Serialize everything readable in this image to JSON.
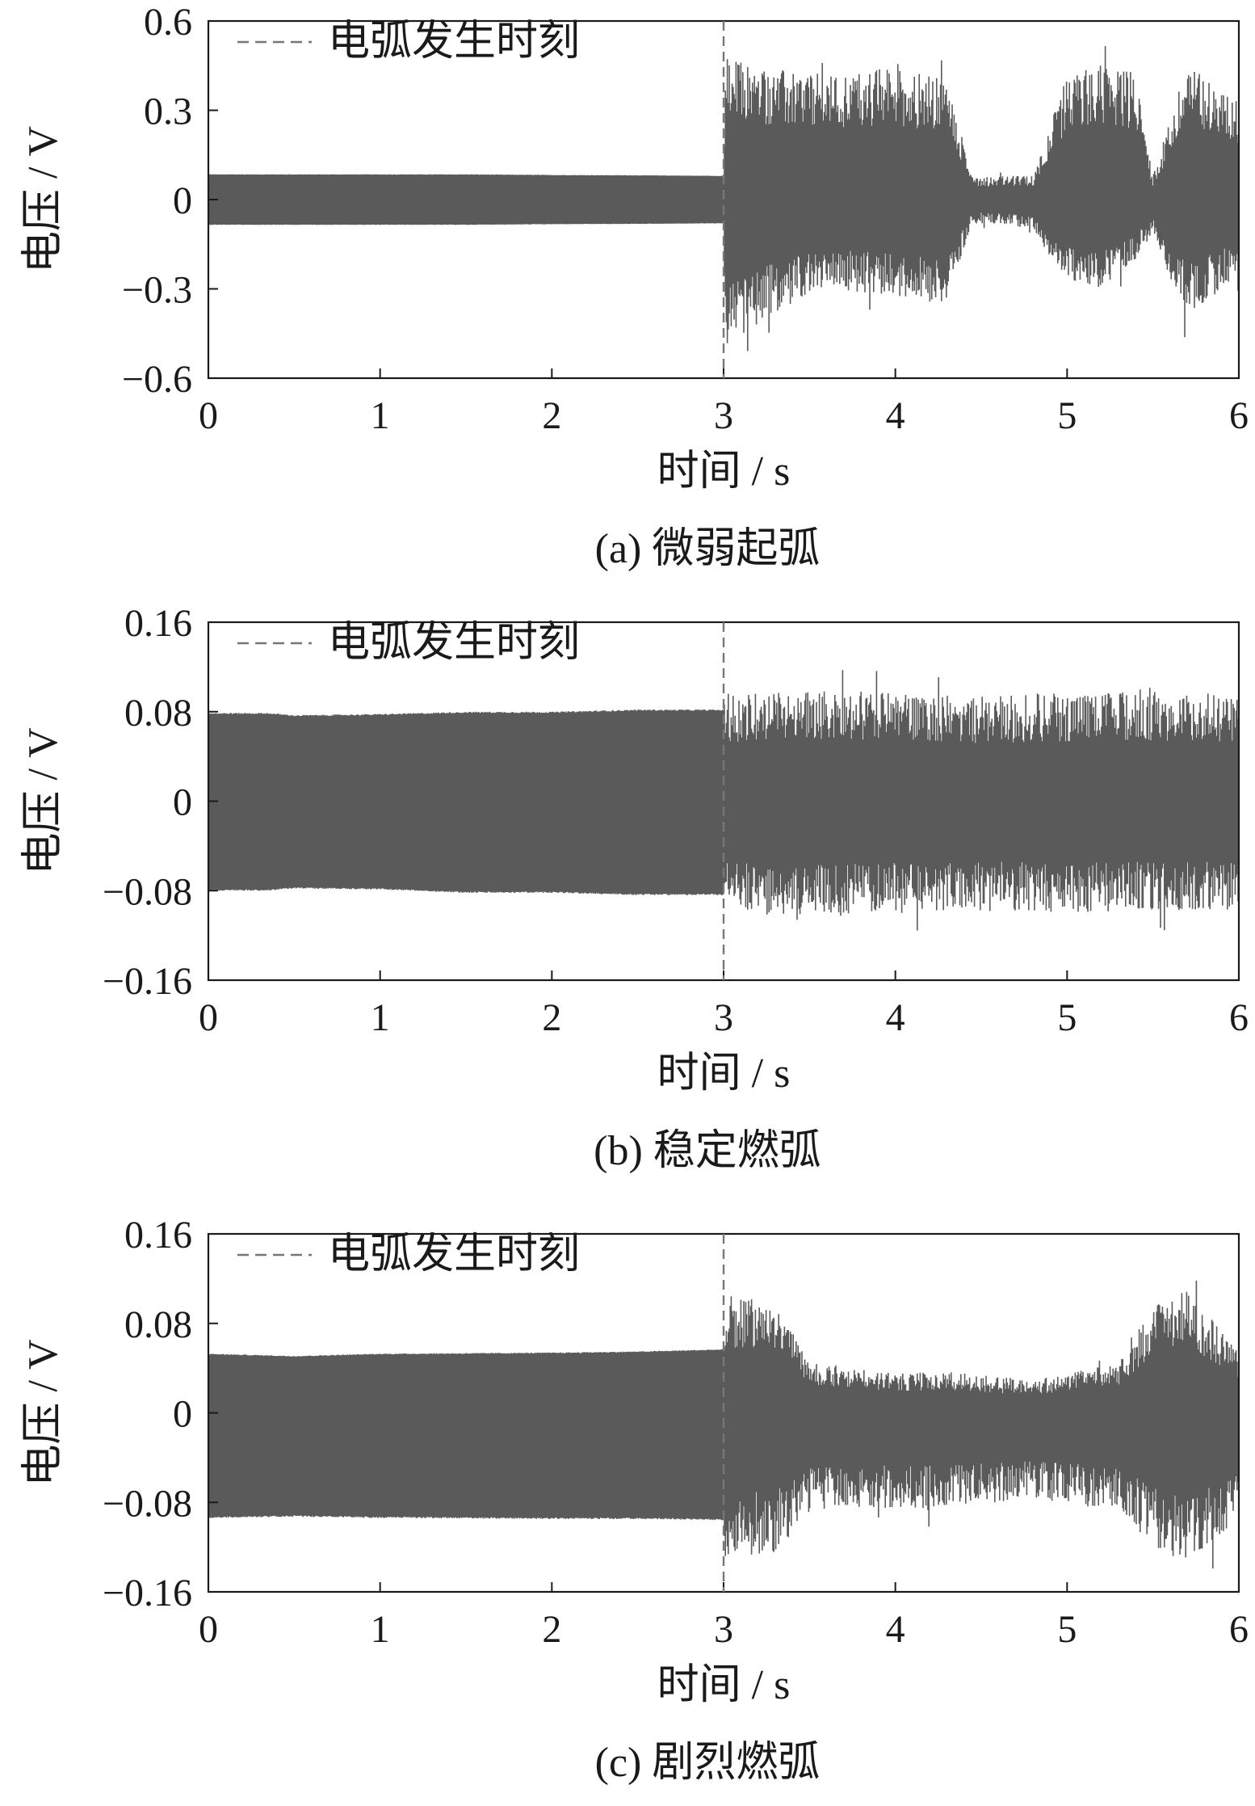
{
  "colors": {
    "signal": "#5a5a5a",
    "axis": "#1a1a1a",
    "marker": "#777777",
    "background": "#ffffff"
  },
  "chart_data": [
    {
      "type": "line",
      "caption": "(a) 微弱起弧",
      "xlabel": "时间 / s",
      "ylabel": "电压 / V",
      "xlim": [
        0,
        6
      ],
      "ylim": [
        -0.6,
        0.6
      ],
      "xticks": [
        "0",
        "1",
        "2",
        "3",
        "4",
        "5",
        "6"
      ],
      "yticks": [
        "0.6",
        "0.3",
        "0",
        "−0.3",
        "−0.6"
      ],
      "legend": {
        "label": "电弧发生时刻",
        "position": "top-left"
      },
      "arc_onset_time": 3,
      "envelope": {
        "name": "",
        "x": [
          0,
          0.5,
          1,
          1.5,
          2,
          2.5,
          3,
          3.01,
          3.3,
          3.6,
          4.0,
          4.3,
          4.45,
          4.6,
          4.8,
          5.0,
          5.2,
          5.4,
          5.5,
          5.7,
          5.9,
          6
        ],
        "upper": [
          0.085,
          0.085,
          0.085,
          0.085,
          0.083,
          0.082,
          0.08,
          0.48,
          0.44,
          0.42,
          0.45,
          0.4,
          0.08,
          0.08,
          0.08,
          0.42,
          0.46,
          0.43,
          0.08,
          0.46,
          0.38,
          0.33
        ],
        "lower": [
          -0.085,
          -0.085,
          -0.085,
          -0.085,
          -0.083,
          -0.082,
          -0.08,
          -0.5,
          -0.38,
          -0.3,
          -0.33,
          -0.35,
          -0.08,
          -0.08,
          -0.1,
          -0.28,
          -0.3,
          -0.2,
          -0.12,
          -0.4,
          -0.3,
          -0.25
        ]
      }
    },
    {
      "type": "line",
      "caption": "(b) 稳定燃弧",
      "xlabel": "时间 / s",
      "ylabel": "电压 / V",
      "xlim": [
        0,
        6
      ],
      "ylim": [
        -0.16,
        0.16
      ],
      "xticks": [
        "0",
        "1",
        "2",
        "3",
        "4",
        "5",
        "6"
      ],
      "yticks": [
        "0.16",
        "0.08",
        "0",
        "−0.08",
        "−0.16"
      ],
      "legend": {
        "label": "电弧发生时刻",
        "position": "top-left"
      },
      "arc_onset_time": 3,
      "envelope": {
        "name": "",
        "x": [
          0,
          0.35,
          0.5,
          1,
          1.5,
          2,
          2.5,
          3,
          3.01,
          3.5,
          4,
          4.5,
          5,
          5.5,
          6
        ],
        "upper": [
          0.079,
          0.079,
          0.077,
          0.078,
          0.08,
          0.08,
          0.082,
          0.082,
          0.096,
          0.1,
          0.098,
          0.094,
          0.097,
          0.098,
          0.096
        ],
        "lower": [
          -0.08,
          -0.08,
          -0.078,
          -0.079,
          -0.082,
          -0.082,
          -0.084,
          -0.084,
          -0.1,
          -0.104,
          -0.1,
          -0.098,
          -0.1,
          -0.098,
          -0.097
        ]
      }
    },
    {
      "type": "line",
      "caption": "(c) 剧烈燃弧",
      "xlabel": "时间 / s",
      "ylabel": "电压 / V",
      "xlim": [
        0,
        6
      ],
      "ylim": [
        -0.16,
        0.16
      ],
      "xticks": [
        "0",
        "1",
        "2",
        "3",
        "4",
        "5",
        "6"
      ],
      "yticks": [
        "0.16",
        "0.08",
        "0",
        "−0.08",
        "−0.16"
      ],
      "legend": {
        "label": "电弧发生时刻",
        "position": "top-left"
      },
      "arc_onset_time": 3,
      "envelope": {
        "name": "",
        "x": [
          0,
          0.5,
          1,
          2,
          2.5,
          3,
          3.01,
          3.3,
          3.5,
          3.8,
          4.0,
          4.3,
          4.6,
          4.8,
          5.0,
          5.3,
          5.5,
          5.7,
          6
        ],
        "upper": [
          0.053,
          0.051,
          0.053,
          0.054,
          0.055,
          0.057,
          0.105,
          0.1,
          0.045,
          0.04,
          0.035,
          0.037,
          0.032,
          0.03,
          0.035,
          0.045,
          0.095,
          0.11,
          0.055
        ],
        "lower": [
          -0.094,
          -0.093,
          -0.094,
          -0.095,
          -0.095,
          -0.096,
          -0.13,
          -0.125,
          -0.09,
          -0.085,
          -0.085,
          -0.085,
          -0.08,
          -0.078,
          -0.08,
          -0.09,
          -0.12,
          -0.135,
          -0.1
        ]
      }
    }
  ]
}
